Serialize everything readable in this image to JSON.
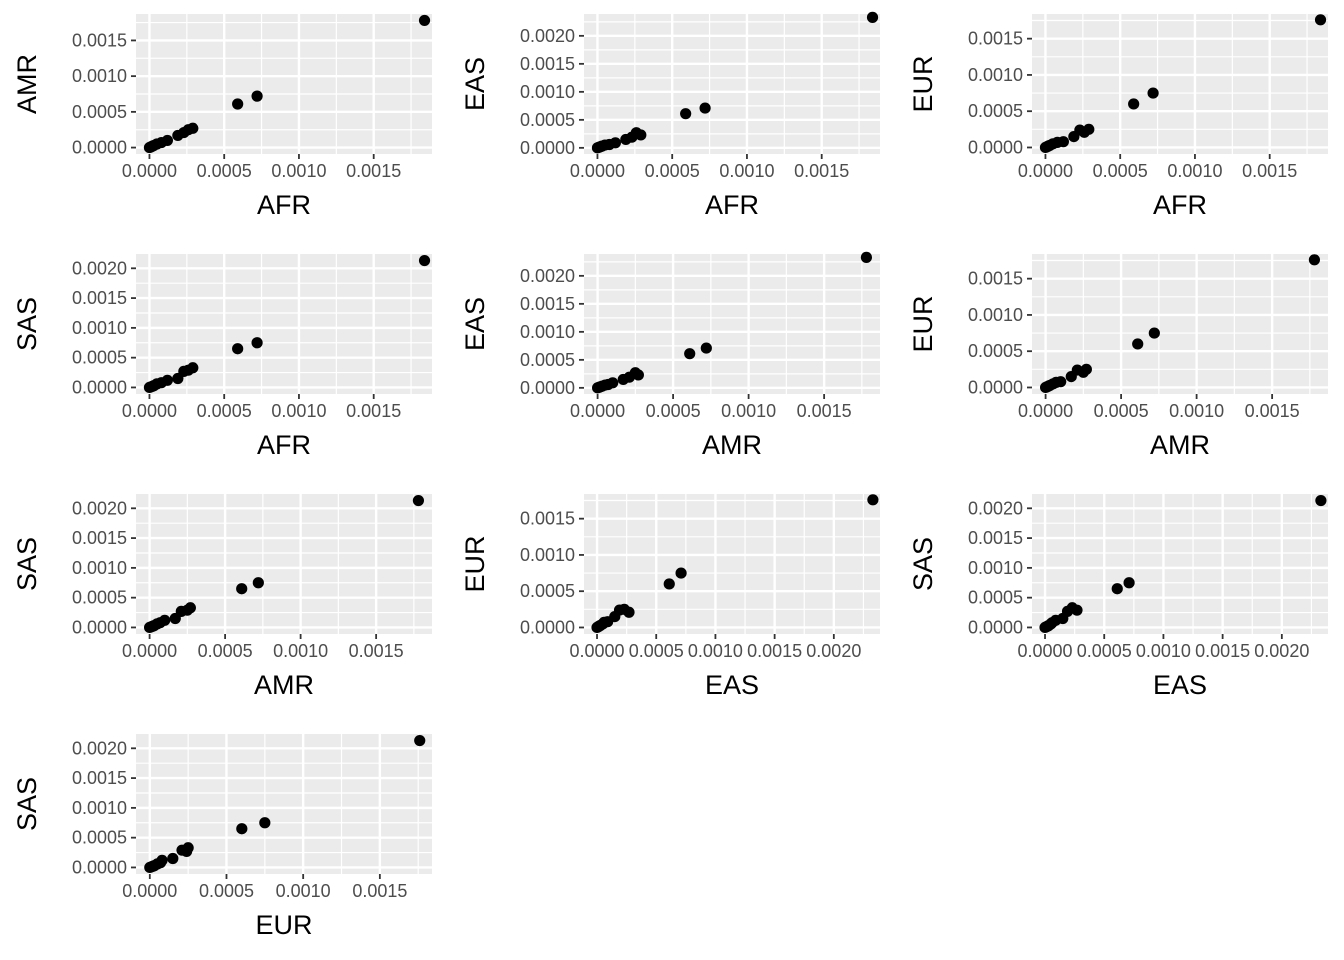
{
  "colors": {
    "panel_background": "#ebebeb",
    "gridline": "#ffffff",
    "point": "#000000",
    "tick_label": "#4d4d4d",
    "axis_title": "#000000"
  },
  "chart_data": [
    {
      "type": "scatter",
      "xlabel": "AFR",
      "ylabel": "AMR",
      "xlim": [
        -9e-05,
        0.00189
      ],
      "ylim": [
        -9e-05,
        0.00187
      ],
      "xticks": [
        "0.0000",
        "0.0005",
        "0.0010",
        "0.0015"
      ],
      "yticks": [
        "0.0000",
        "0.0005",
        "0.0010",
        "0.0015"
      ],
      "x": [
        0.0,
        1e-05,
        2e-05,
        3e-05,
        5e-05,
        8e-05,
        0.00012,
        0.00019,
        0.00023,
        0.00026,
        0.00029,
        0.00059,
        0.00072,
        0.00184
      ],
      "y": [
        0.0,
        1e-05,
        2e-05,
        3e-05,
        5e-05,
        7e-05,
        0.0001,
        0.00017,
        0.00021,
        0.00025,
        0.00027,
        0.00061,
        0.00072,
        0.00178
      ]
    },
    {
      "type": "scatter",
      "xlabel": "AFR",
      "ylabel": "EAS",
      "xlim": [
        -9e-05,
        0.00189
      ],
      "ylim": [
        -0.00011,
        0.00239
      ],
      "xticks": [
        "0.0000",
        "0.0005",
        "0.0010",
        "0.0015"
      ],
      "yticks": [
        "0.0000",
        "0.0005",
        "0.0010",
        "0.0015",
        "0.0020"
      ],
      "x": [
        0.0,
        1e-05,
        2e-05,
        3e-05,
        5e-05,
        8e-05,
        0.00012,
        0.00019,
        0.00023,
        0.00026,
        0.00029,
        0.00059,
        0.00072,
        0.00184
      ],
      "y": [
        0.0,
        1e-05,
        2e-05,
        3e-05,
        5e-05,
        6e-05,
        9e-05,
        0.00015,
        0.00019,
        0.00027,
        0.00023,
        0.00061,
        0.00071,
        0.00233
      ]
    },
    {
      "type": "scatter",
      "xlabel": "AFR",
      "ylabel": "EUR",
      "xlim": [
        -9e-05,
        0.00189
      ],
      "ylim": [
        -9e-05,
        0.00184
      ],
      "xticks": [
        "0.0000",
        "0.0005",
        "0.0010",
        "0.0015"
      ],
      "yticks": [
        "0.0000",
        "0.0005",
        "0.0010",
        "0.0015"
      ],
      "x": [
        0.0,
        1e-05,
        2e-05,
        3e-05,
        5e-05,
        8e-05,
        0.00012,
        0.00019,
        0.00023,
        0.00026,
        0.00029,
        0.00059,
        0.00072,
        0.00184
      ],
      "y": [
        0.0,
        1e-05,
        2e-05,
        3e-05,
        5e-05,
        7e-05,
        8e-05,
        0.00015,
        0.00024,
        0.00021,
        0.00025,
        0.0006,
        0.00075,
        0.00176
      ]
    },
    {
      "type": "scatter",
      "xlabel": "AFR",
      "ylabel": "SAS",
      "xlim": [
        -9e-05,
        0.00189
      ],
      "ylim": [
        -0.00011,
        0.00224
      ],
      "xticks": [
        "0.0000",
        "0.0005",
        "0.0010",
        "0.0015"
      ],
      "yticks": [
        "0.0000",
        "0.0005",
        "0.0010",
        "0.0015",
        "0.0020"
      ],
      "x": [
        0.0,
        1e-05,
        2e-05,
        3e-05,
        5e-05,
        8e-05,
        0.00012,
        0.00019,
        0.00023,
        0.00026,
        0.00029,
        0.00059,
        0.00072,
        0.00184
      ],
      "y": [
        0.0,
        1e-05,
        2e-05,
        3e-05,
        6e-05,
        8e-05,
        0.00012,
        0.00015,
        0.00027,
        0.00029,
        0.00033,
        0.00065,
        0.00075,
        0.00213
      ]
    },
    {
      "type": "scatter",
      "xlabel": "AMR",
      "ylabel": "EAS",
      "xlim": [
        -9e-05,
        0.00187
      ],
      "ylim": [
        -0.00011,
        0.00239
      ],
      "xticks": [
        "0.0000",
        "0.0005",
        "0.0010",
        "0.0015"
      ],
      "yticks": [
        "0.0000",
        "0.0005",
        "0.0010",
        "0.0015",
        "0.0020"
      ],
      "x": [
        0.0,
        1e-05,
        2e-05,
        3e-05,
        5e-05,
        7e-05,
        0.0001,
        0.00017,
        0.00021,
        0.00025,
        0.00027,
        0.00061,
        0.00072,
        0.00178
      ],
      "y": [
        0.0,
        1e-05,
        2e-05,
        3e-05,
        5e-05,
        6e-05,
        9e-05,
        0.00015,
        0.00019,
        0.00027,
        0.00023,
        0.00061,
        0.00071,
        0.00233
      ]
    },
    {
      "type": "scatter",
      "xlabel": "AMR",
      "ylabel": "EUR",
      "xlim": [
        -9e-05,
        0.00187
      ],
      "ylim": [
        -9e-05,
        0.00184
      ],
      "xticks": [
        "0.0000",
        "0.0005",
        "0.0010",
        "0.0015"
      ],
      "yticks": [
        "0.0000",
        "0.0005",
        "0.0010",
        "0.0015"
      ],
      "x": [
        0.0,
        1e-05,
        2e-05,
        3e-05,
        5e-05,
        7e-05,
        0.0001,
        0.00017,
        0.00021,
        0.00025,
        0.00027,
        0.00061,
        0.00072,
        0.00178
      ],
      "y": [
        0.0,
        1e-05,
        2e-05,
        3e-05,
        5e-05,
        7e-05,
        8e-05,
        0.00015,
        0.00024,
        0.00021,
        0.00025,
        0.0006,
        0.00075,
        0.00176
      ]
    },
    {
      "type": "scatter",
      "xlabel": "AMR",
      "ylabel": "SAS",
      "xlim": [
        -9e-05,
        0.00187
      ],
      "ylim": [
        -0.00011,
        0.00224
      ],
      "xticks": [
        "0.0000",
        "0.0005",
        "0.0010",
        "0.0015"
      ],
      "yticks": [
        "0.0000",
        "0.0005",
        "0.0010",
        "0.0015",
        "0.0020"
      ],
      "x": [
        0.0,
        1e-05,
        2e-05,
        3e-05,
        5e-05,
        7e-05,
        0.0001,
        0.00017,
        0.00021,
        0.00025,
        0.00027,
        0.00061,
        0.00072,
        0.00178
      ],
      "y": [
        0.0,
        1e-05,
        2e-05,
        3e-05,
        6e-05,
        8e-05,
        0.00012,
        0.00015,
        0.00027,
        0.00029,
        0.00033,
        0.00065,
        0.00075,
        0.00213
      ]
    },
    {
      "type": "scatter",
      "xlabel": "EAS",
      "ylabel": "EUR",
      "xlim": [
        -0.00011,
        0.00239
      ],
      "ylim": [
        -9e-05,
        0.00184
      ],
      "xticks": [
        "0.0000",
        "0.0005",
        "0.0010",
        "0.0015",
        "0.0020"
      ],
      "yticks": [
        "0.0000",
        "0.0005",
        "0.0010",
        "0.0015"
      ],
      "x": [
        0.0,
        1e-05,
        2e-05,
        3e-05,
        5e-05,
        6e-05,
        9e-05,
        0.00015,
        0.00019,
        0.00027,
        0.00023,
        0.00061,
        0.00071,
        0.00233
      ],
      "y": [
        0.0,
        1e-05,
        2e-05,
        3e-05,
        5e-05,
        7e-05,
        8e-05,
        0.00015,
        0.00024,
        0.00021,
        0.00025,
        0.0006,
        0.00075,
        0.00176
      ]
    },
    {
      "type": "scatter",
      "xlabel": "EAS",
      "ylabel": "SAS",
      "xlim": [
        -0.00011,
        0.00239
      ],
      "ylim": [
        -0.00011,
        0.00224
      ],
      "xticks": [
        "0.0000",
        "0.0005",
        "0.0010",
        "0.0015",
        "0.0020"
      ],
      "yticks": [
        "0.0000",
        "0.0005",
        "0.0010",
        "0.0015",
        "0.0020"
      ],
      "x": [
        0.0,
        1e-05,
        2e-05,
        3e-05,
        5e-05,
        6e-05,
        9e-05,
        0.00015,
        0.00019,
        0.00027,
        0.00023,
        0.00061,
        0.00071,
        0.00233
      ],
      "y": [
        0.0,
        1e-05,
        2e-05,
        3e-05,
        6e-05,
        8e-05,
        0.00012,
        0.00015,
        0.00027,
        0.00029,
        0.00033,
        0.00065,
        0.00075,
        0.00213
      ]
    },
    {
      "type": "scatter",
      "xlabel": "EUR",
      "ylabel": "SAS",
      "xlim": [
        -9e-05,
        0.00184
      ],
      "ylim": [
        -0.00011,
        0.00224
      ],
      "xticks": [
        "0.0000",
        "0.0005",
        "0.0010",
        "0.0015"
      ],
      "yticks": [
        "0.0000",
        "0.0005",
        "0.0010",
        "0.0015",
        "0.0020"
      ],
      "x": [
        0.0,
        1e-05,
        2e-05,
        3e-05,
        5e-05,
        7e-05,
        8e-05,
        0.00015,
        0.00024,
        0.00021,
        0.00025,
        0.0006,
        0.00075,
        0.00176
      ],
      "y": [
        0.0,
        1e-05,
        2e-05,
        3e-05,
        6e-05,
        8e-05,
        0.00012,
        0.00015,
        0.00027,
        0.00029,
        0.00033,
        0.00065,
        0.00075,
        0.00213
      ]
    }
  ]
}
